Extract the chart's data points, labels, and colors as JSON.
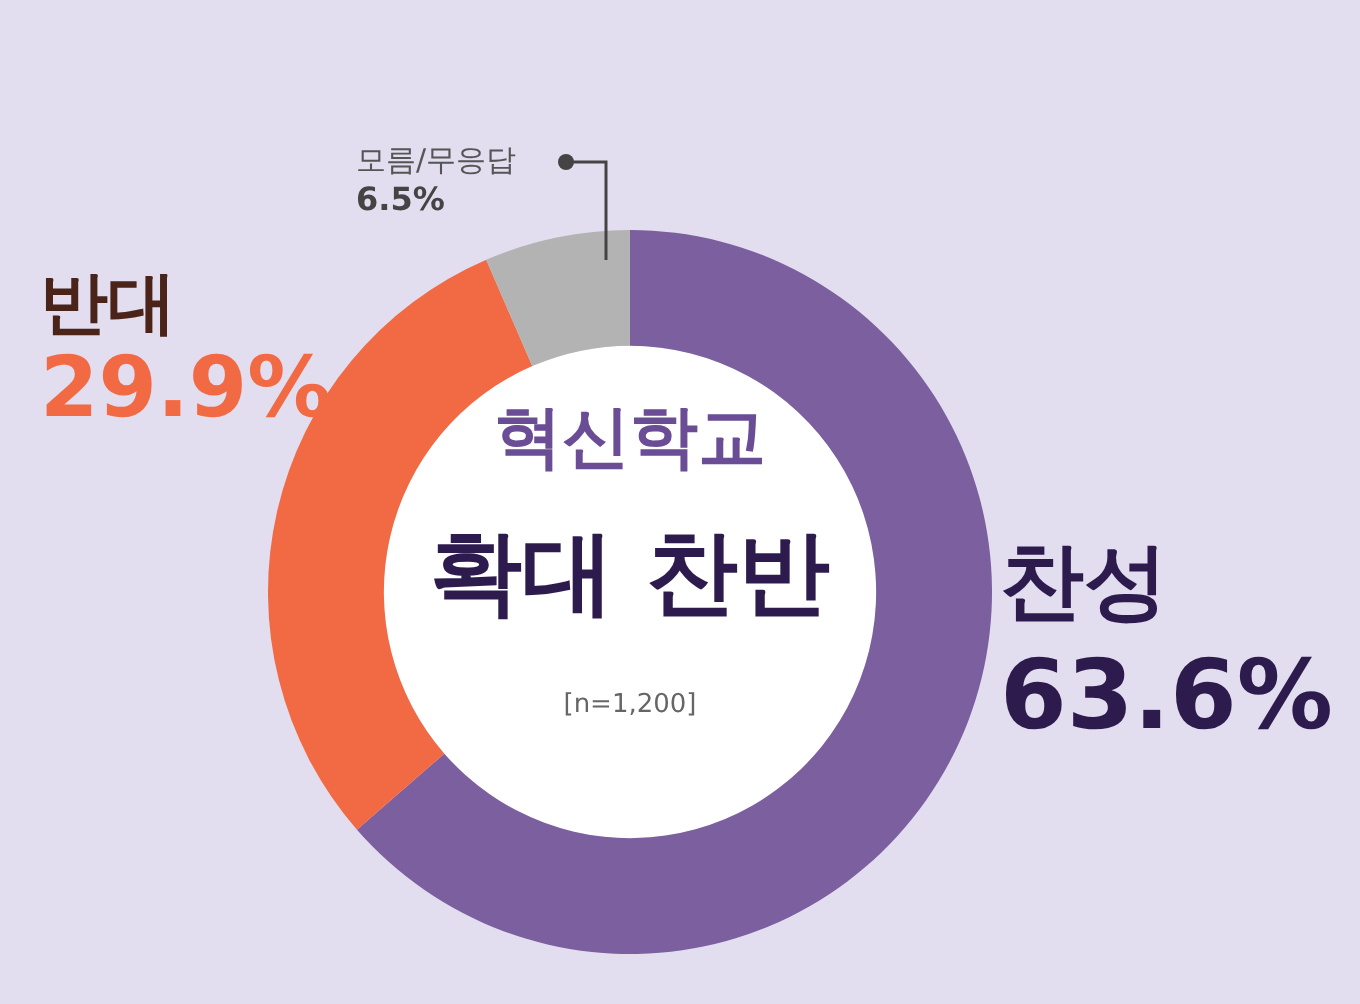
{
  "chart_data": {
    "type": "donut",
    "title": "혁신학교",
    "subtitle": "확대 찬반",
    "annotations": [
      "[n=1,200]"
    ],
    "categories": [
      "찬성",
      "반대",
      "모름/무응답"
    ],
    "values": [
      63.6,
      29.9,
      6.5
    ],
    "value_labels": [
      "63.6%",
      "29.9%",
      "6.5%"
    ],
    "colors": [
      "#7b5f9e",
      "#f26a43",
      "#b3b3b3"
    ],
    "legend": false
  }
}
